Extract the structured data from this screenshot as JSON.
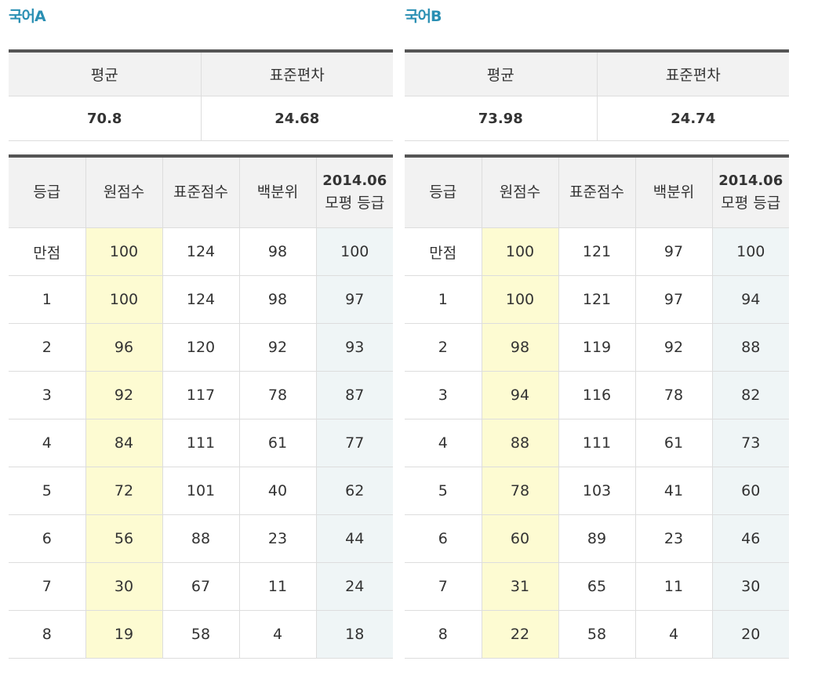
{
  "panels": [
    {
      "title": "국어A",
      "summary": {
        "mean_label": "평균",
        "sd_label": "표준편차",
        "mean": "70.8",
        "sd": "24.68"
      },
      "headers": {
        "grade": "등급",
        "raw": "원점수",
        "std": "표준점수",
        "pct": "백분위",
        "mock_year": "2014.06",
        "mock_label": "모평 등급"
      },
      "rows": [
        [
          "만점",
          "100",
          "124",
          "98",
          "100"
        ],
        [
          "1",
          "100",
          "124",
          "98",
          "97"
        ],
        [
          "2",
          "96",
          "120",
          "92",
          "93"
        ],
        [
          "3",
          "92",
          "117",
          "78",
          "87"
        ],
        [
          "4",
          "84",
          "111",
          "61",
          "77"
        ],
        [
          "5",
          "72",
          "101",
          "40",
          "62"
        ],
        [
          "6",
          "56",
          "88",
          "23",
          "44"
        ],
        [
          "7",
          "30",
          "67",
          "11",
          "24"
        ],
        [
          "8",
          "19",
          "58",
          "4",
          "18"
        ]
      ]
    },
    {
      "title": "국어B",
      "summary": {
        "mean_label": "평균",
        "sd_label": "표준편차",
        "mean": "73.98",
        "sd": "24.74"
      },
      "headers": {
        "grade": "등급",
        "raw": "원점수",
        "std": "표준점수",
        "pct": "백분위",
        "mock_year": "2014.06",
        "mock_label": "모평 등급"
      },
      "rows": [
        [
          "만점",
          "100",
          "121",
          "97",
          "100"
        ],
        [
          "1",
          "100",
          "121",
          "97",
          "94"
        ],
        [
          "2",
          "98",
          "119",
          "92",
          "88"
        ],
        [
          "3",
          "94",
          "116",
          "78",
          "82"
        ],
        [
          "4",
          "88",
          "111",
          "61",
          "73"
        ],
        [
          "5",
          "78",
          "103",
          "41",
          "60"
        ],
        [
          "6",
          "60",
          "89",
          "23",
          "46"
        ],
        [
          "7",
          "31",
          "65",
          "11",
          "30"
        ],
        [
          "8",
          "22",
          "58",
          "4",
          "20"
        ]
      ]
    }
  ],
  "colors": {
    "title": "#2a8fb3",
    "raw_col_bg": "#fdfbd2",
    "mock_col_bg": "#eff5f6",
    "header_bg": "#f2f2f2",
    "top_rule": "#555555"
  }
}
